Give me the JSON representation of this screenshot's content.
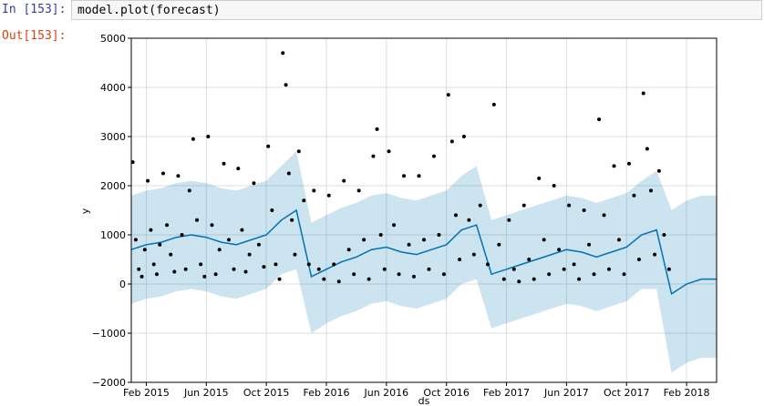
{
  "cell": {
    "in_prompt": "In [153]:",
    "code": "model.plot(forecast)",
    "out_prompt": "Out[153]:"
  },
  "chart_data": {
    "type": "line",
    "x_label": "ds",
    "y_label": "y",
    "xlim": [
      "2015-01",
      "2018-04"
    ],
    "xticks": [
      {
        "value": "2015-02",
        "label": "Feb 2015"
      },
      {
        "value": "2015-06",
        "label": "Jun 2015"
      },
      {
        "value": "2015-10",
        "label": "Oct 2015"
      },
      {
        "value": "2016-02",
        "label": "Feb 2016"
      },
      {
        "value": "2016-06",
        "label": "Jun 2016"
      },
      {
        "value": "2016-10",
        "label": "Oct 2016"
      },
      {
        "value": "2017-02",
        "label": "Feb 2017"
      },
      {
        "value": "2017-06",
        "label": "Jun 2017"
      },
      {
        "value": "2017-10",
        "label": "Oct 2017"
      },
      {
        "value": "2018-02",
        "label": "Feb 2018"
      }
    ],
    "ylim": [
      -2000,
      5000
    ],
    "yticks": [
      {
        "value": -2000,
        "label": "−2000"
      },
      {
        "value": -1000,
        "label": "−1000"
      },
      0,
      1000,
      2000,
      3000,
      4000,
      5000
    ],
    "grid": true,
    "x": [
      "2015-01",
      "2015-02",
      "2015-03",
      "2015-04",
      "2015-05",
      "2015-06",
      "2015-07",
      "2015-08",
      "2015-09",
      "2015-10",
      "2015-11",
      "2015-12",
      "2016-01",
      "2016-02",
      "2016-03",
      "2016-04",
      "2016-05",
      "2016-06",
      "2016-07",
      "2016-08",
      "2016-09",
      "2016-10",
      "2016-11",
      "2016-12",
      "2017-01",
      "2017-02",
      "2017-03",
      "2017-04",
      "2017-05",
      "2017-06",
      "2017-07",
      "2017-08",
      "2017-09",
      "2017-10",
      "2017-11",
      "2017-12",
      "2018-01",
      "2018-02",
      "2018-03",
      "2018-04"
    ],
    "forecast": {
      "color": "#0072B2",
      "yhat": [
        700,
        800,
        850,
        950,
        1000,
        950,
        850,
        800,
        900,
        1000,
        1300,
        1500,
        150,
        300,
        450,
        550,
        700,
        750,
        650,
        600,
        700,
        800,
        1100,
        1200,
        200,
        300,
        400,
        500,
        600,
        700,
        650,
        550,
        650,
        750,
        1000,
        1100,
        -200,
        0,
        100,
        100
      ],
      "yhat_upper": [
        1800,
        1900,
        1950,
        2050,
        2100,
        2050,
        1950,
        1900,
        2000,
        2100,
        2400,
        2700,
        1250,
        1400,
        1550,
        1650,
        1800,
        1850,
        1750,
        1700,
        1800,
        1900,
        2200,
        2400,
        1300,
        1400,
        1500,
        1600,
        1700,
        1800,
        1750,
        1650,
        1750,
        1850,
        2100,
        2300,
        1500,
        1700,
        1800,
        1800
      ],
      "yhat_lower": [
        -400,
        -300,
        -250,
        -150,
        -100,
        -150,
        -250,
        -300,
        -200,
        -100,
        200,
        300,
        -1000,
        -800,
        -650,
        -550,
        -400,
        -350,
        -450,
        -500,
        -400,
        -300,
        0,
        100,
        -900,
        -800,
        -700,
        -600,
        -500,
        -400,
        -450,
        -550,
        -450,
        -350,
        -100,
        -100,
        -1800,
        -1600,
        -1500,
        -1500
      ]
    },
    "observed": {
      "color": "#000000",
      "x": [
        "2015-01",
        "2015-01",
        "2015-01",
        "2015-01",
        "2015-01",
        "2015-02",
        "2015-02",
        "2015-02",
        "2015-02",
        "2015-02",
        "2015-03",
        "2015-03",
        "2015-03",
        "2015-03",
        "2015-04",
        "2015-04",
        "2015-04",
        "2015-04",
        "2015-05",
        "2015-05",
        "2015-05",
        "2015-05",
        "2015-06",
        "2015-06",
        "2015-06",
        "2015-06",
        "2015-07",
        "2015-07",
        "2015-07",
        "2015-08",
        "2015-08",
        "2015-08",
        "2015-08",
        "2015-09",
        "2015-09",
        "2015-09",
        "2015-10",
        "2015-10",
        "2015-10",
        "2015-10",
        "2015-11",
        "2015-11",
        "2015-11",
        "2015-11",
        "2015-11",
        "2015-12",
        "2015-12",
        "2015-12",
        "2016-01",
        "2016-01",
        "2016-01",
        "2016-02",
        "2016-02",
        "2016-02",
        "2016-03",
        "2016-03",
        "2016-03",
        "2016-04",
        "2016-04",
        "2016-04",
        "2016-05",
        "2016-05",
        "2016-05",
        "2016-05",
        "2016-06",
        "2016-06",
        "2016-06",
        "2016-07",
        "2016-07",
        "2016-07",
        "2016-08",
        "2016-08",
        "2016-08",
        "2016-09",
        "2016-09",
        "2016-09",
        "2016-10",
        "2016-10",
        "2016-10",
        "2016-10",
        "2016-11",
        "2016-11",
        "2016-11",
        "2016-12",
        "2016-12",
        "2017-01",
        "2017-01",
        "2017-01",
        "2017-02",
        "2017-02",
        "2017-02",
        "2017-03",
        "2017-03",
        "2017-03",
        "2017-04",
        "2017-04",
        "2017-04",
        "2017-05",
        "2017-05",
        "2017-05",
        "2017-06",
        "2017-06",
        "2017-06",
        "2017-07",
        "2017-07",
        "2017-07",
        "2017-08",
        "2017-08",
        "2017-08",
        "2017-09",
        "2017-09",
        "2017-09",
        "2017-10",
        "2017-10",
        "2017-10",
        "2017-11",
        "2017-11",
        "2017-11",
        "2017-11",
        "2017-12",
        "2017-12",
        "2017-12"
      ],
      "values": [
        2480,
        900,
        300,
        150,
        700,
        2100,
        1100,
        400,
        200,
        800,
        2250,
        1200,
        600,
        250,
        2200,
        1000,
        300,
        1900,
        2950,
        1300,
        400,
        150,
        3000,
        1200,
        200,
        700,
        2450,
        900,
        300,
        2350,
        1100,
        250,
        600,
        2050,
        800,
        350,
        2800,
        1500,
        400,
        100,
        4700,
        4050,
        2250,
        1300,
        600,
        2700,
        1700,
        400,
        1900,
        300,
        100,
        1800,
        400,
        50,
        2100,
        700,
        200,
        1900,
        900,
        100,
        2600,
        3150,
        1000,
        300,
        2700,
        1200,
        200,
        2200,
        800,
        150,
        2200,
        900,
        300,
        2600,
        1000,
        200,
        3850,
        2900,
        1400,
        500,
        3000,
        1300,
        600,
        1600,
        400,
        3650,
        800,
        100,
        1300,
        300,
        50,
        1600,
        500,
        100,
        2150,
        900,
        200,
        2000,
        700,
        300,
        1600,
        400,
        100,
        1500,
        800,
        200,
        3350,
        1400,
        300,
        2400,
        900,
        200,
        2450,
        1800,
        500,
        3880,
        2750,
        1900,
        600,
        2300,
        1000,
        300
      ]
    }
  }
}
